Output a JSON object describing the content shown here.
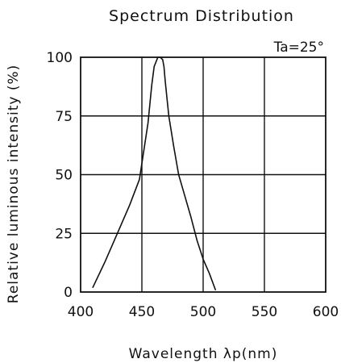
{
  "chart_data": {
    "type": "line",
    "title": "Spectrum Distribution",
    "xlabel": "Wavelength λp(nm)",
    "ylabel": "Relative luminous intensity (%)",
    "annotation": "Ta=25°",
    "xlim": [
      400,
      600
    ],
    "ylim": [
      0,
      100
    ],
    "x_ticks": [
      "400",
      "450",
      "500",
      "550",
      "600"
    ],
    "y_ticks": [
      "0",
      "25",
      "50",
      "75",
      "100"
    ],
    "grid": true,
    "series": [
      {
        "x": [
          410,
          420,
          430,
          440,
          448,
          455,
          458,
          460,
          463,
          465,
          467,
          468,
          469,
          472,
          476,
          480,
          485,
          490,
          495,
          500,
          505,
          510
        ],
        "y": [
          2,
          13,
          25,
          37,
          48,
          72,
          88,
          96,
          100,
          100,
          99,
          96,
          90,
          75,
          62,
          50,
          41,
          32,
          22,
          14,
          8,
          1
        ]
      }
    ]
  }
}
